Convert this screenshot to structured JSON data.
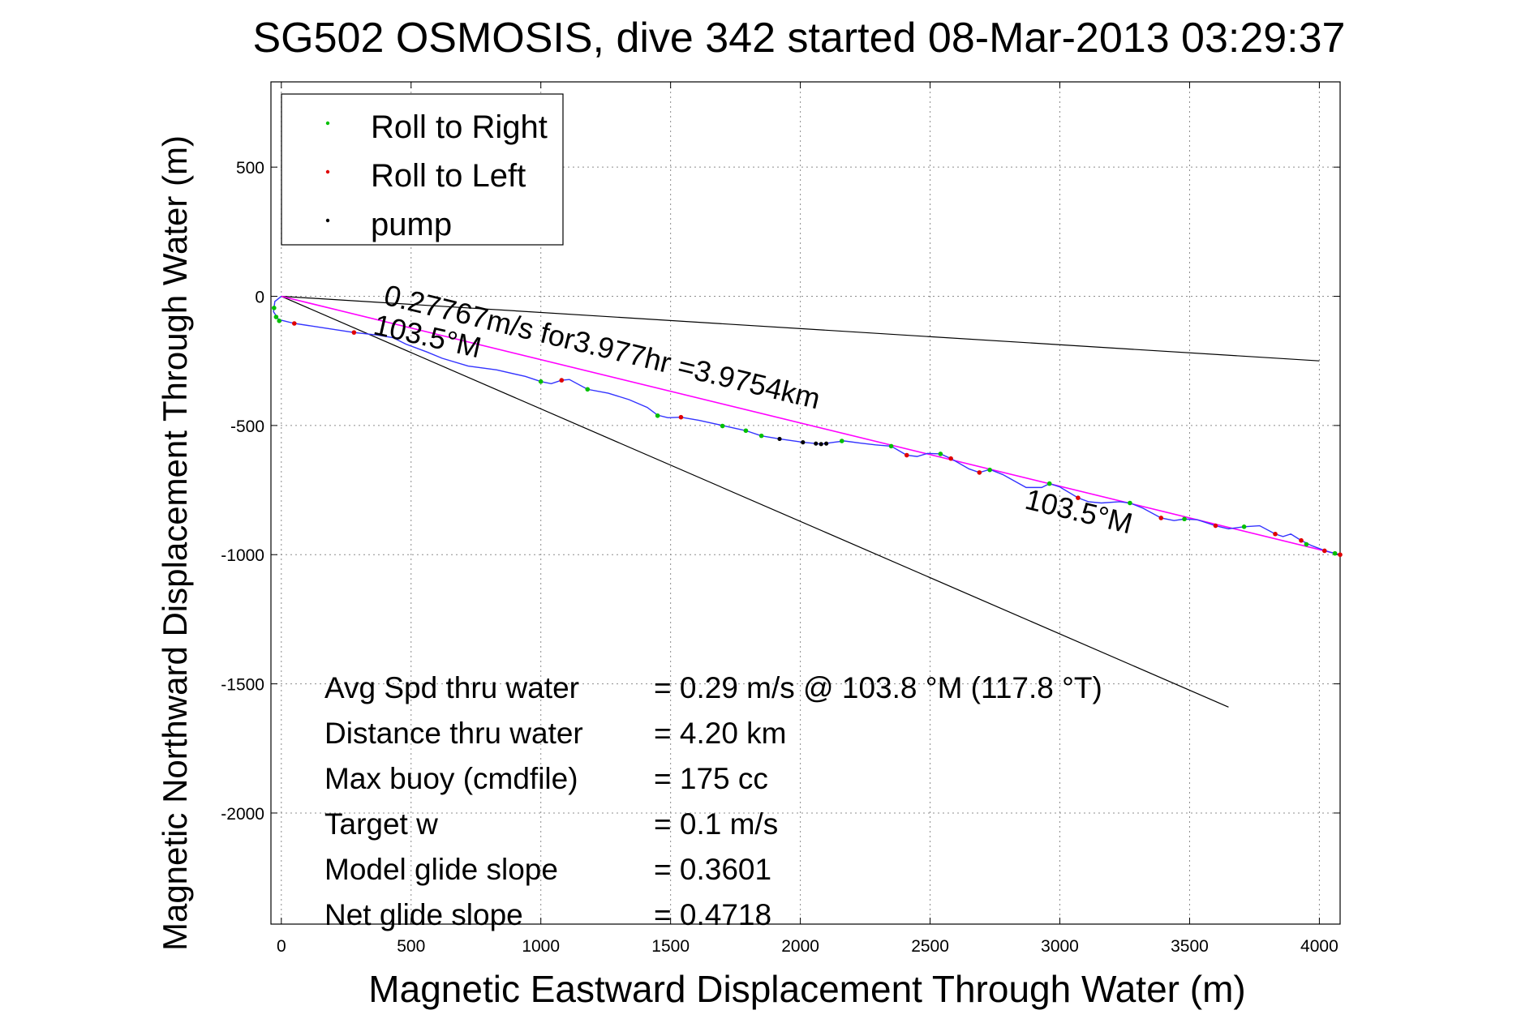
{
  "chart_data": {
    "type": "line",
    "title": "SG502 OSMOSIS, dive 342 started 08-Mar-2013 03:29:37",
    "xlabel": "Magnetic Eastward Displacement Through Water (m)",
    "ylabel": "Magnetic Northward Displacement Through Water (m)",
    "xlim": [
      -40,
      4080
    ],
    "ylim": [
      -2430,
      830
    ],
    "xticks": [
      0,
      500,
      1000,
      1500,
      2000,
      2500,
      3000,
      3500,
      4000
    ],
    "yticks": [
      500,
      0,
      -500,
      -1000,
      -1500,
      -2000
    ],
    "xtick_labels": [
      "0",
      "500",
      "1000",
      "1500",
      "2000",
      "2500",
      "3000",
      "3500",
      "4000"
    ],
    "ytick_labels": [
      "500",
      "0",
      "-500",
      "-1000",
      "-1500",
      "-2000"
    ],
    "grid": true,
    "legend_position": "top-left",
    "legend": [
      {
        "label": "Roll to Right",
        "color": "#00c000"
      },
      {
        "label": "Roll to Left",
        "color": "#e00000"
      },
      {
        "label": "pump",
        "color": "#000000"
      }
    ],
    "track": {
      "color": "#3333ff",
      "points": [
        [
          0,
          0
        ],
        [
          -25,
          -20
        ],
        [
          -30,
          -60
        ],
        [
          -10,
          -90
        ],
        [
          50,
          -105
        ],
        [
          150,
          -120
        ],
        [
          280,
          -140
        ],
        [
          370,
          -150
        ],
        [
          430,
          -160
        ],
        [
          480,
          -185
        ],
        [
          560,
          -215
        ],
        [
          620,
          -240
        ],
        [
          720,
          -270
        ],
        [
          830,
          -285
        ],
        [
          940,
          -310
        ],
        [
          1000,
          -330
        ],
        [
          1040,
          -338
        ],
        [
          1080,
          -325
        ],
        [
          1110,
          -322
        ],
        [
          1180,
          -360
        ],
        [
          1260,
          -375
        ],
        [
          1340,
          -400
        ],
        [
          1410,
          -430
        ],
        [
          1450,
          -460
        ],
        [
          1490,
          -470
        ],
        [
          1540,
          -468
        ],
        [
          1610,
          -480
        ],
        [
          1700,
          -500
        ],
        [
          1790,
          -520
        ],
        [
          1850,
          -540
        ],
        [
          1920,
          -552
        ],
        [
          2010,
          -565
        ],
        [
          2080,
          -572
        ],
        [
          2130,
          -565
        ],
        [
          2170,
          -560
        ],
        [
          2230,
          -568
        ],
        [
          2290,
          -575
        ],
        [
          2350,
          -580
        ],
        [
          2410,
          -615
        ],
        [
          2450,
          -620
        ],
        [
          2490,
          -608
        ],
        [
          2540,
          -610
        ],
        [
          2580,
          -628
        ],
        [
          2650,
          -668
        ],
        [
          2690,
          -682
        ],
        [
          2730,
          -670
        ],
        [
          2780,
          -690
        ],
        [
          2870,
          -740
        ],
        [
          2930,
          -740
        ],
        [
          2960,
          -725
        ],
        [
          3000,
          -738
        ],
        [
          3070,
          -780
        ],
        [
          3110,
          -795
        ],
        [
          3160,
          -800
        ],
        [
          3230,
          -795
        ],
        [
          3270,
          -800
        ],
        [
          3320,
          -820
        ],
        [
          3390,
          -858
        ],
        [
          3440,
          -868
        ],
        [
          3480,
          -862
        ],
        [
          3530,
          -865
        ],
        [
          3600,
          -888
        ],
        [
          3650,
          -900
        ],
        [
          3710,
          -892
        ],
        [
          3770,
          -888
        ],
        [
          3830,
          -920
        ],
        [
          3860,
          -930
        ],
        [
          3890,
          -920
        ],
        [
          3930,
          -945
        ],
        [
          3970,
          -965
        ],
        [
          4010,
          -980
        ],
        [
          4040,
          -990
        ],
        [
          4060,
          -995
        ],
        [
          4080,
          -1000
        ]
      ]
    },
    "roll_right": [
      [
        -28,
        -45
      ],
      [
        -20,
        -80
      ],
      [
        -8,
        -95
      ],
      [
        1000,
        -330
      ],
      [
        1180,
        -360
      ],
      [
        1450,
        -462
      ],
      [
        1700,
        -502
      ],
      [
        1790,
        -520
      ],
      [
        1850,
        -540
      ],
      [
        2160,
        -560
      ],
      [
        2350,
        -580
      ],
      [
        2540,
        -610
      ],
      [
        2730,
        -672
      ],
      [
        2960,
        -725
      ],
      [
        3270,
        -800
      ],
      [
        3480,
        -862
      ],
      [
        3710,
        -892
      ],
      [
        3950,
        -960
      ],
      [
        4060,
        -995
      ]
    ],
    "roll_left": [
      [
        50,
        -105
      ],
      [
        280,
        -140
      ],
      [
        1080,
        -325
      ],
      [
        1540,
        -468
      ],
      [
        2410,
        -615
      ],
      [
        2580,
        -628
      ],
      [
        2690,
        -682
      ],
      [
        3070,
        -780
      ],
      [
        3390,
        -858
      ],
      [
        3600,
        -888
      ],
      [
        3830,
        -920
      ],
      [
        3930,
        -945
      ],
      [
        4020,
        -985
      ],
      [
        4080,
        -1000
      ]
    ],
    "pump": [
      [
        1920,
        -552
      ],
      [
        2010,
        -565
      ],
      [
        2060,
        -570
      ],
      [
        2080,
        -572
      ],
      [
        2100,
        -570
      ]
    ],
    "mean_line": {
      "color": "#ff00ff",
      "from": [
        0,
        0
      ],
      "to": [
        4080,
        -1000
      ]
    },
    "heading_line_upper": {
      "color": "#000000",
      "from": [
        0,
        0
      ],
      "to": [
        4000,
        -250
      ]
    },
    "heading_line_lower": {
      "color": "#000000",
      "from": [
        0,
        0
      ],
      "to": [
        3650,
        -1590
      ]
    },
    "annotations": [
      {
        "text": "0.27767m/s for3.977hr =3.9754km",
        "x": 390,
        "y": -30,
        "rotate": 13.6
      },
      {
        "text": "103.5°M",
        "x": 350,
        "y": -145,
        "rotate": 12.8
      },
      {
        "text": "103.5°M",
        "x": 2860,
        "y": -820,
        "rotate": 13.6
      }
    ],
    "stats": [
      {
        "label": "Avg Spd thru water",
        "value": "=  0.29 m/s @ 103.8 °M (117.8 °T)"
      },
      {
        "label": "Distance thru water",
        "value": "=  4.20 km"
      },
      {
        "label": "Max buoy (cmdfile)",
        "value": "= 175 cc"
      },
      {
        "label": "Target w",
        "value": "= 0.1 m/s"
      },
      {
        "label": "Model glide slope",
        "value": "= 0.3601"
      },
      {
        "label": "Net glide slope",
        "value": "= 0.4718"
      }
    ]
  }
}
